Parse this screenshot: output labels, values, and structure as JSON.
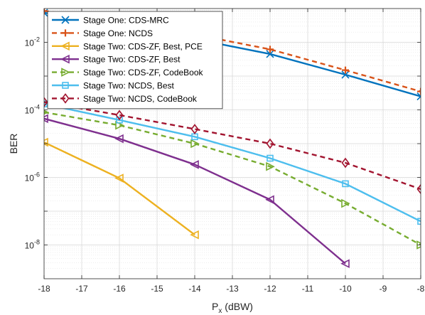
{
  "chart_data": {
    "type": "line",
    "title": "",
    "xlabel": "P",
    "xlabel_sub": "x",
    "xlabel_unit": " (dBW)",
    "ylabel": "BER",
    "x": [
      -18,
      -16,
      -14,
      -12,
      -10,
      -8
    ],
    "xlim": [
      -18,
      -8
    ],
    "xticks": [
      -18,
      -17,
      -16,
      -15,
      -14,
      -13,
      -12,
      -11,
      -10,
      -9,
      -8
    ],
    "ylim": [
      1e-09,
      0.1
    ],
    "ylog": true,
    "yticks": [
      {
        "value": 1e-08,
        "base": "10",
        "exp": "-8"
      },
      {
        "value": 1e-06,
        "base": "10",
        "exp": "-6"
      },
      {
        "value": 0.0001,
        "base": "10",
        "exp": "-4"
      },
      {
        "value": 0.01,
        "base": "10",
        "exp": "-2"
      }
    ],
    "grid": true,
    "minor_grid": true,
    "legend_position": "top-left",
    "series": [
      {
        "name": "Stage One: CDS-MRC",
        "color": "#0072BD",
        "dash": "solid",
        "marker": "x",
        "x": [
          -18,
          -16,
          -14,
          -12,
          -10,
          -8
        ],
        "values": [
          0.075,
          0.035,
          0.0125,
          0.0045,
          0.0011,
          0.00025
        ]
      },
      {
        "name": "Stage One: NCDS",
        "color": "#D95319",
        "dash": "dashed",
        "marker": "plus",
        "x": [
          -18,
          -16,
          -14,
          -12,
          -10,
          -8
        ],
        "values": [
          0.085,
          0.045,
          0.017,
          0.0062,
          0.0015,
          0.00035
        ]
      },
      {
        "name": "Stage Two: CDS-ZF, Best, PCE",
        "color": "#EDB120",
        "dash": "solid",
        "marker": "triangle-left",
        "x": [
          -18,
          -16,
          -14
        ],
        "values": [
          1.1e-05,
          9.5e-07,
          2e-08
        ]
      },
      {
        "name": "Stage Two: CDS-ZF, Best",
        "color": "#7E2F8E",
        "dash": "solid",
        "marker": "triangle-left",
        "x": [
          -18,
          -16,
          -14,
          -12,
          -10
        ],
        "values": [
          5.5e-05,
          1.4e-05,
          2.4e-06,
          2.2e-07,
          2.8e-09
        ]
      },
      {
        "name": "Stage Two: CDS-ZF, CodeBook",
        "color": "#77AC30",
        "dash": "dashed",
        "marker": "triangle-right",
        "x": [
          -18,
          -16,
          -14,
          -12,
          -10,
          -8
        ],
        "values": [
          8.5e-05,
          3.5e-05,
          1e-05,
          2.1e-06,
          1.7e-07,
          1e-08
        ]
      },
      {
        "name": "Stage Two: NCDS, Best",
        "color": "#4DBEEE",
        "dash": "solid",
        "marker": "square",
        "x": [
          -18,
          -16,
          -14,
          -12,
          -10,
          -8
        ],
        "values": [
          0.00015,
          5e-05,
          1.6e-05,
          3.7e-06,
          6.5e-07,
          5e-08
        ]
      },
      {
        "name": "Stage Two: NCDS, CodeBook",
        "color": "#A2142F",
        "dash": "dashed",
        "marker": "diamond",
        "x": [
          -18,
          -16,
          -14,
          -12,
          -10,
          -8
        ],
        "values": [
          0.00017,
          7e-05,
          2.7e-05,
          1e-05,
          2.7e-06,
          4.5e-07
        ]
      }
    ]
  }
}
